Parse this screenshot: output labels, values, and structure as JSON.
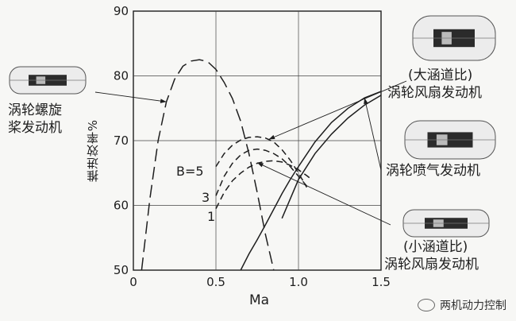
{
  "chart_data": {
    "type": "line",
    "xlabel": "Ma",
    "ylabel": "推进效率%",
    "xlim": [
      0,
      1.5
    ],
    "ylim": [
      50,
      90
    ],
    "xticks": [
      "0",
      "0.5",
      "1.0",
      "1.5"
    ],
    "yticks": [
      "50",
      "60",
      "70",
      "80",
      "90"
    ],
    "grid": true,
    "series": [
      {
        "name": "涡轮螺旋桨发动机",
        "style": "long-dash",
        "x": [
          0.05,
          0.1,
          0.15,
          0.2,
          0.25,
          0.3,
          0.35,
          0.4,
          0.45,
          0.5,
          0.55,
          0.6,
          0.65,
          0.7,
          0.75,
          0.8,
          0.85,
          0.9
        ],
        "y": [
          50,
          61,
          70,
          76,
          79.5,
          81.5,
          82.3,
          82.5,
          82.2,
          81,
          79,
          76.5,
          73,
          68,
          62,
          55.5,
          50,
          43
        ]
      },
      {
        "name": "B=5",
        "style": "dash",
        "x": [
          0.5,
          0.55,
          0.6,
          0.65,
          0.7,
          0.75,
          0.8,
          0.85,
          0.9,
          0.95,
          1.0,
          1.05
        ],
        "y": [
          66,
          68,
          69.3,
          70.1,
          70.5,
          70.6,
          70.4,
          69.8,
          68.6,
          67,
          65,
          62.8
        ]
      },
      {
        "name": "3",
        "style": "dash",
        "x": [
          0.5,
          0.55,
          0.6,
          0.65,
          0.7,
          0.75,
          0.8,
          0.85,
          0.9,
          0.95,
          1.0,
          1.05
        ],
        "y": [
          61.5,
          64.5,
          66.5,
          67.8,
          68.5,
          68.7,
          68.5,
          68,
          67.2,
          66,
          64.5,
          63
        ]
      },
      {
        "name": "1",
        "style": "dash",
        "x": [
          0.5,
          0.55,
          0.6,
          0.65,
          0.7,
          0.75,
          0.8,
          0.85,
          0.9,
          0.95,
          1.0,
          1.05,
          1.08
        ],
        "y": [
          59.5,
          62,
          63.8,
          65,
          65.9,
          66.5,
          66.8,
          66.9,
          66.7,
          66.2,
          65.5,
          64.6,
          64
        ]
      },
      {
        "name": "涡轮喷气发动机",
        "style": "solid",
        "x": [
          0.65,
          0.7,
          0.75,
          0.8,
          0.85,
          0.9,
          0.95,
          1.0,
          1.1,
          1.2,
          1.3,
          1.4,
          1.5
        ],
        "y": [
          50,
          52.5,
          54.7,
          57,
          59.4,
          61.8,
          64,
          66,
          69.8,
          72.8,
          75,
          76.6,
          77.6
        ]
      },
      {
        "name": "(大涵道比) 涡轮风扇发动机",
        "style": "solid",
        "x": [
          0.9,
          1.0,
          1.1,
          1.2,
          1.3,
          1.4,
          1.5
        ],
        "y": [
          58,
          64,
          68,
          71,
          73.5,
          75.5,
          77
        ]
      }
    ],
    "annotations": [
      {
        "text": "涡轮螺旋桨发动机",
        "lines": [
          "涡轮螺旋",
          "桨发动机"
        ]
      },
      {
        "text": "(大涵道比) 涡轮风扇发动机",
        "lines": [
          "(大涵道比)",
          "涡轮风扇发动机"
        ]
      },
      {
        "text": "涡轮喷气发动机",
        "lines": [
          "涡轮喷气发动机"
        ]
      },
      {
        "text": "(小涵道比) 涡轮风扇发动机",
        "lines": [
          "(小涵道比)",
          "涡轮风扇发动机"
        ]
      }
    ],
    "curve_labels": [
      "B=5",
      "3",
      "1"
    ]
  },
  "watermark": "两机动力控制",
  "colors": {
    "ink": "#1e1e1e",
    "grid": "#444444",
    "background": "#f7f7f5"
  }
}
